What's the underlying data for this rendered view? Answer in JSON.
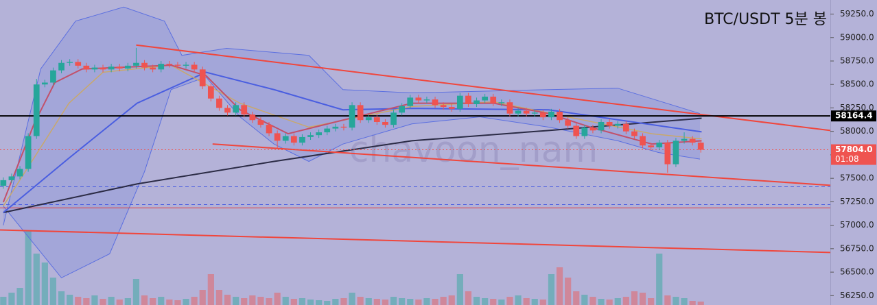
{
  "chart_data": {
    "type": "candlestick",
    "title": "BTC/USDT 5분 봉",
    "watermark": "chavoon_nam",
    "up_color": "#26a69a",
    "down_color": "#ef5350",
    "open": [
      57420,
      57480,
      57520,
      57600,
      57950,
      58500,
      58520,
      58650,
      58730,
      58740,
      58700,
      58660,
      58680,
      58660,
      58690,
      58670,
      58700,
      58730,
      58680,
      58660,
      58720,
      58710,
      58700,
      58710,
      58660,
      58480,
      58350,
      58250,
      58200,
      58280,
      58180,
      58120,
      58070,
      57980,
      57900,
      57950,
      57880,
      57940,
      57960,
      57990,
      58030,
      58050,
      58040,
      58280,
      58120,
      58150,
      58100,
      58070,
      58200,
      58270,
      58360,
      58330,
      58340,
      58280,
      58260,
      58240,
      58380,
      58290,
      58330,
      58370,
      58300,
      58310,
      58190,
      58220,
      58190,
      58200,
      58150,
      58210,
      58120,
      58060,
      57950,
      58040,
      58010,
      58100,
      58060,
      58080,
      58000,
      57950,
      57850,
      57830,
      57880,
      57650,
      57900,
      57920,
      57880
    ],
    "high": [
      57510,
      57550,
      57630,
      57980,
      58560,
      58550,
      58680,
      58760,
      58770,
      58770,
      58730,
      58710,
      58710,
      58720,
      58720,
      58730,
      58890,
      58760,
      58710,
      58750,
      58750,
      58740,
      58740,
      58740,
      58690,
      58510,
      58380,
      58280,
      58310,
      58310,
      58210,
      58150,
      58100,
      58010,
      57980,
      57980,
      57970,
      57990,
      58020,
      58060,
      58080,
      58080,
      58310,
      58310,
      58180,
      58180,
      58130,
      58230,
      58300,
      58390,
      58390,
      58370,
      58370,
      58310,
      58290,
      58410,
      58410,
      58360,
      58400,
      58400,
      58340,
      58340,
      58250,
      58250,
      58230,
      58230,
      58240,
      58240,
      58150,
      58090,
      58070,
      58070,
      58130,
      58130,
      58110,
      58110,
      58030,
      57980,
      57880,
      57910,
      57910,
      57930,
      57990,
      57950,
      57910
    ],
    "low": [
      57390,
      57450,
      57490,
      57570,
      57920,
      58470,
      58490,
      58620,
      58700,
      58670,
      58630,
      58630,
      58630,
      58630,
      58640,
      58640,
      58670,
      58650,
      58630,
      58630,
      58680,
      58670,
      58670,
      58630,
      58450,
      58320,
      58220,
      58170,
      58170,
      58150,
      58090,
      58040,
      57950,
      57820,
      57870,
      57850,
      57850,
      57910,
      57930,
      57960,
      58000,
      58010,
      58010,
      58090,
      58090,
      58070,
      58040,
      58040,
      58170,
      58240,
      58300,
      58300,
      58250,
      58230,
      58210,
      58210,
      58260,
      58260,
      58300,
      58270,
      58270,
      58160,
      58160,
      58160,
      58160,
      58120,
      58120,
      58090,
      58030,
      57920,
      57920,
      57980,
      57980,
      58030,
      58030,
      57970,
      57920,
      57820,
      57800,
      57800,
      57560,
      57620,
      57870,
      57850,
      57774
    ],
    "close": [
      57480,
      57520,
      57600,
      57950,
      58500,
      58520,
      58650,
      58730,
      58740,
      58700,
      58660,
      58680,
      58660,
      58690,
      58670,
      58700,
      58730,
      58680,
      58660,
      58720,
      58710,
      58700,
      58710,
      58660,
      58480,
      58350,
      58250,
      58200,
      58280,
      58180,
      58120,
      58070,
      57980,
      57900,
      57950,
      57880,
      57940,
      57960,
      57990,
      58030,
      58050,
      58040,
      58280,
      58120,
      58150,
      58100,
      58070,
      58200,
      58270,
      58360,
      58330,
      58340,
      58280,
      58260,
      58240,
      58380,
      58290,
      58330,
      58370,
      58300,
      58310,
      58190,
      58220,
      58190,
      58200,
      58150,
      58210,
      58120,
      58060,
      57950,
      58040,
      58010,
      58100,
      58060,
      58080,
      58000,
      57950,
      57850,
      57830,
      57880,
      57650,
      57900,
      57920,
      57880,
      57804
    ],
    "volume": [
      12,
      18,
      25,
      108,
      75,
      62,
      40,
      20,
      15,
      12,
      10,
      14,
      9,
      12,
      8,
      10,
      38,
      14,
      10,
      12,
      8,
      7,
      9,
      12,
      22,
      45,
      22,
      15,
      12,
      10,
      14,
      12,
      10,
      18,
      12,
      9,
      10,
      8,
      7,
      6,
      9,
      10,
      18,
      12,
      10,
      9,
      8,
      12,
      10,
      9,
      8,
      10,
      9,
      12,
      14,
      45,
      20,
      12,
      10,
      9,
      8,
      12,
      14,
      10,
      9,
      8,
      45,
      55,
      40,
      20,
      15,
      12,
      9,
      8,
      10,
      12,
      20,
      18,
      10,
      75,
      14,
      12,
      10,
      6,
      5
    ],
    "volume_lim": [
      0,
      150
    ],
    "xlim": [
      -0.4,
      99.6
    ],
    "ylim": [
      56150,
      59400
    ],
    "yticks": [
      {
        "value": 56250,
        "label": "56250.0"
      },
      {
        "value": 56500,
        "label": "56500.0"
      },
      {
        "value": 56750,
        "label": "56750.0"
      },
      {
        "value": 57000,
        "label": "57000.0"
      },
      {
        "value": 57250,
        "label": "57250.0"
      },
      {
        "value": 57500,
        "label": "57500.0"
      },
      {
        "value": 57750,
        "label": "57750.0"
      },
      {
        "value": 58000,
        "label": "58000.0"
      },
      {
        "value": 58250,
        "label": "58250.0"
      },
      {
        "value": 58500,
        "label": "58500.0"
      },
      {
        "value": 58750,
        "label": "58750.0"
      },
      {
        "value": 59000,
        "label": "59000.0"
      },
      {
        "value": 59250,
        "label": "59250.0"
      }
    ],
    "band": {
      "color": "#5b6fe0",
      "upper": {
        "x": [
          0,
          4.5,
          8.7,
          14.5,
          19.4,
          21.5,
          26.9,
          36.8,
          40.9,
          49.2,
          65.7,
          74,
          83.9
        ],
        "values": [
          57000,
          58665,
          59175,
          59325,
          59175,
          58810,
          58885,
          58810,
          58445,
          58410,
          58445,
          58460,
          58190
        ]
      },
      "lower": {
        "x": [
          0,
          7,
          12.8,
          17,
          20.2,
          24.4,
          28.5,
          32.6,
          36.8,
          40.9,
          49.2,
          57.4,
          65.7,
          74,
          78.9,
          83.9
        ],
        "values": [
          57205,
          56440,
          56695,
          57570,
          58445,
          58580,
          58155,
          57865,
          57680,
          57865,
          58080,
          58155,
          58045,
          57900,
          57775,
          57705
        ]
      }
    },
    "lines": [
      {
        "color": "#2b2b45",
        "width": 2,
        "x": [
          0,
          16.1,
          32.6,
          49.2,
          65.7,
          84.1
        ],
        "values": [
          57135,
          57440,
          57680,
          57900,
          58010,
          58140
        ]
      },
      {
        "color": "#4a5ee0",
        "width": 2,
        "x": [
          0,
          7.9,
          16.1,
          24.4,
          32.6,
          40.9,
          49.2,
          65.7,
          84.1
        ],
        "values": [
          57135,
          57715,
          58300,
          58630,
          58445,
          58230,
          58245,
          58230,
          57995
        ]
      },
      {
        "color": "#c9a86a",
        "width": 1.5,
        "x": [
          0,
          7.9,
          12,
          20.2,
          28.5,
          36.8,
          49.2,
          59.1,
          69.9,
          78.1,
          84.1
        ],
        "values": [
          57205,
          58300,
          58630,
          58705,
          58300,
          58045,
          58265,
          58315,
          58120,
          57975,
          57920
        ]
      },
      {
        "color": "#c2506a",
        "width": 2,
        "x": [
          0,
          3.7,
          6.2,
          9.5,
          20.2,
          24.4,
          28.5,
          34.3,
          40.9,
          49.2,
          59.1,
          65.7,
          70.7,
          78.1,
          84.1
        ],
        "values": [
          57245,
          58080,
          58520,
          58665,
          58705,
          58595,
          58230,
          57975,
          58120,
          58300,
          58300,
          58190,
          58045,
          57865,
          57900
        ]
      },
      {
        "color": "#f0463c",
        "width": 2,
        "x": [
          16,
          99.6
        ],
        "values": [
          58920,
          58010
        ]
      },
      {
        "color": "#f0463c",
        "width": 2,
        "x": [
          25.2,
          99.6
        ],
        "values": [
          57865,
          57425
        ]
      },
      {
        "color": "#f0463c",
        "width": 2,
        "x": [
          -0.4,
          99.6
        ],
        "values": [
          56950,
          56710
        ]
      }
    ],
    "hlines": [
      {
        "value": 57410,
        "color": "#4a5ee0",
        "dash": true
      },
      {
        "value": 57220,
        "color": "#4a5ee0",
        "dash": true
      },
      {
        "value": 57185,
        "color": "#e04040",
        "dash": false
      }
    ],
    "price_lines": [
      {
        "value": 58164.4,
        "label": "58164.4",
        "color": "#000000",
        "dash": false
      },
      {
        "value": 57804,
        "label": "57804.0",
        "countdown": "01:08",
        "color": "#ef5350",
        "dash": true
      }
    ]
  }
}
